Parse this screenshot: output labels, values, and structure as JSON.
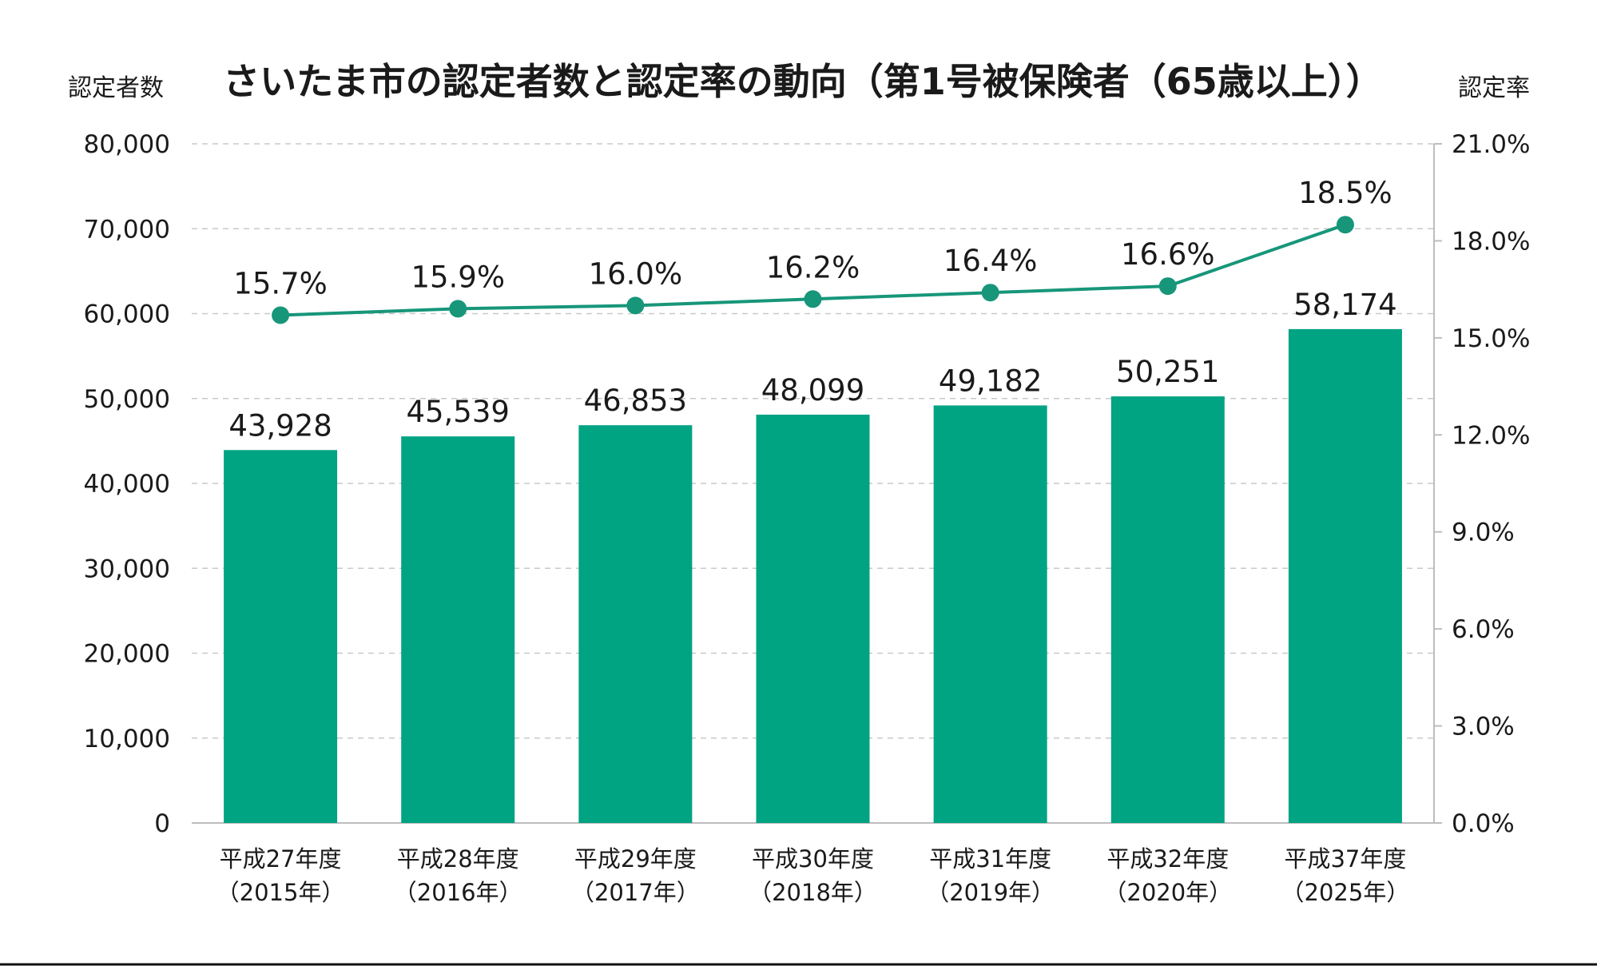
{
  "chart_data": {
    "type": "bar",
    "title": "さいたま市の認定者数と認定率の動向（第1号被保険者（65歳以上））",
    "ylabel": "認定者数",
    "y2label": "認定率",
    "categories": [
      [
        "平成27年度",
        "（2015年）"
      ],
      [
        "平成28年度",
        "（2016年）"
      ],
      [
        "平成29年度",
        "（2017年）"
      ],
      [
        "平成30年度",
        "（2018年）"
      ],
      [
        "平成31年度",
        "（2019年）"
      ],
      [
        "平成32年度",
        "（2020年）"
      ],
      [
        "平成37年度",
        "（2025年）"
      ]
    ],
    "series": [
      {
        "type": "bar",
        "axis": "left",
        "values": [
          43928,
          45539,
          46853,
          48099,
          49182,
          50251,
          58174
        ],
        "labels": [
          "43,928",
          "45,539",
          "46,853",
          "48,099",
          "49,182",
          "50,251",
          "58,174"
        ],
        "color": "#00A382"
      },
      {
        "type": "line",
        "axis": "right",
        "values": [
          15.7,
          15.9,
          16.0,
          16.2,
          16.4,
          16.6,
          18.5
        ],
        "labels": [
          "15.7%",
          "15.9%",
          "16.0%",
          "16.2%",
          "16.4%",
          "16.6%",
          "18.5%"
        ],
        "color": "#17967A"
      }
    ],
    "ylim": [
      0,
      80000
    ],
    "y2lim": [
      0,
      21
    ],
    "yticks": [
      "0",
      "10,000",
      "20,000",
      "30,000",
      "40,000",
      "50,000",
      "60,000",
      "70,000",
      "80,000"
    ],
    "y2ticks": [
      "0.0%",
      "3.0%",
      "6.0%",
      "9.0%",
      "12.0%",
      "15.0%",
      "18.0%",
      "21.0%"
    ],
    "grid": true,
    "legend": "none"
  }
}
